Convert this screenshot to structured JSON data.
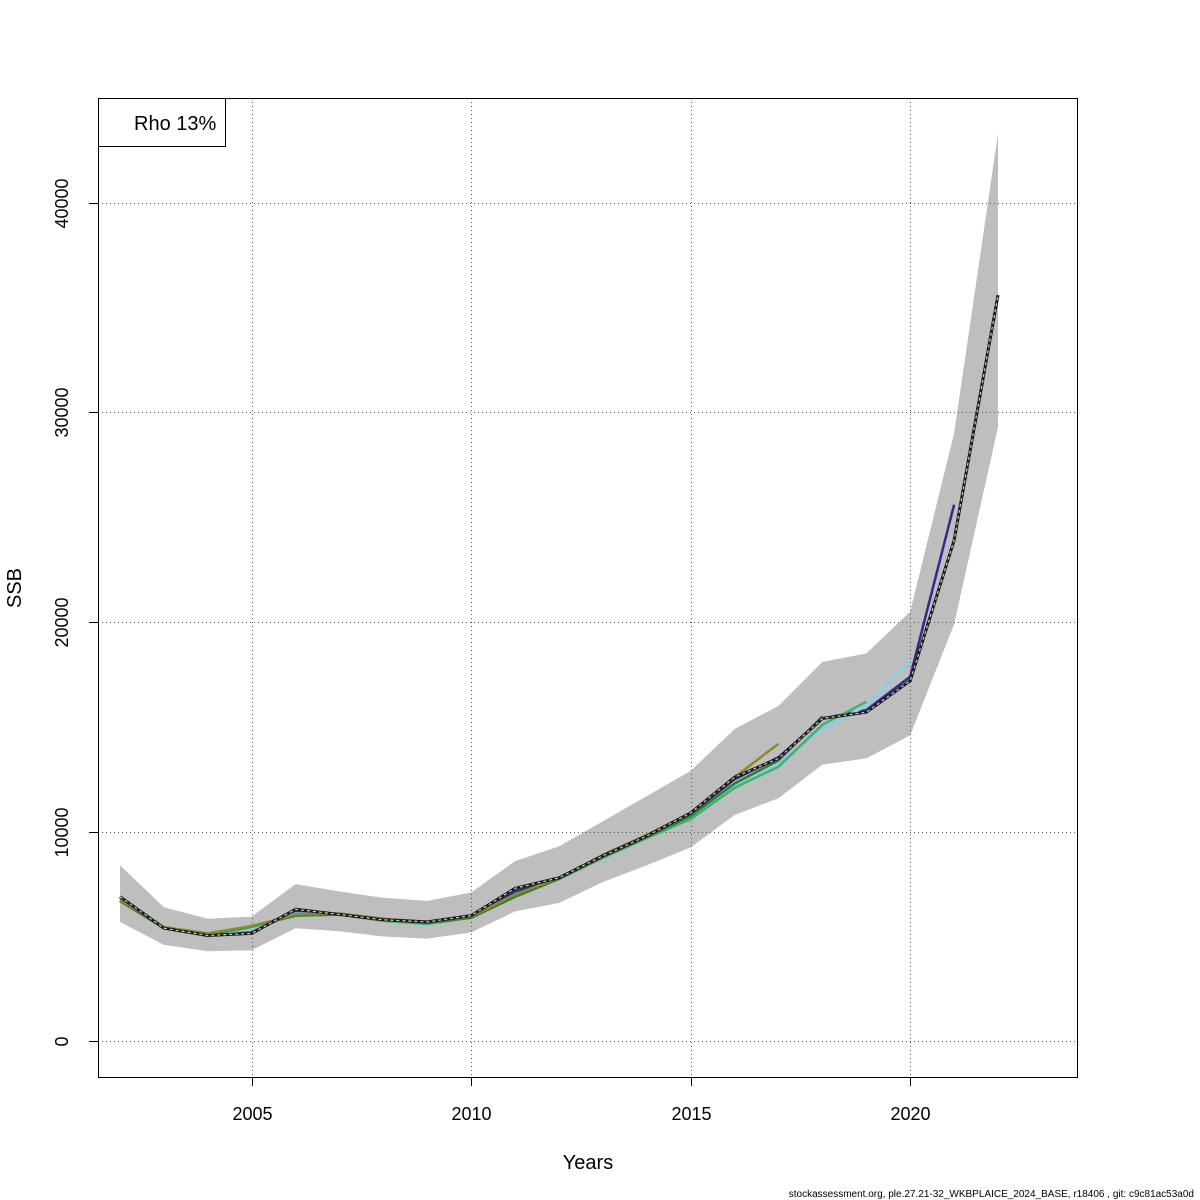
{
  "chart_data": {
    "type": "line",
    "xlabel": "Years",
    "ylabel": "SSB",
    "xlim": [
      2001.5,
      2023.8
    ],
    "ylim": [
      -1700,
      45000
    ],
    "x_ticks": [
      2005,
      2010,
      2015,
      2020
    ],
    "y_ticks": [
      0,
      10000,
      20000,
      30000,
      40000
    ],
    "grid": true,
    "legend": {
      "text": "Rho 13%",
      "placement": "top-left"
    },
    "confidence_band": {
      "color": "#bebebe",
      "x": [
        2002,
        2003,
        2004,
        2005,
        2006,
        2007,
        2008,
        2009,
        2010,
        2011,
        2012,
        2013,
        2014,
        2015,
        2016,
        2017,
        2018,
        2019,
        2020,
        2021,
        2022
      ],
      "lower": [
        5700,
        4600,
        4300,
        4350,
        5400,
        5250,
        5000,
        4900,
        5200,
        6200,
        6600,
        7600,
        8400,
        9250,
        10800,
        11600,
        13200,
        13500,
        14600,
        19900,
        29300
      ],
      "upper": [
        8400,
        6400,
        5850,
        5950,
        7500,
        7150,
        6850,
        6700,
        7100,
        8600,
        9300,
        10500,
        11700,
        12900,
        14900,
        16000,
        18100,
        18500,
        20500,
        29000,
        43300
      ]
    },
    "series": [
      {
        "color": "#1a1a1a",
        "dashed": true,
        "x": [
          2002,
          2003,
          2004,
          2005,
          2006,
          2007,
          2008,
          2009,
          2010,
          2011,
          2012,
          2013,
          2014,
          2015,
          2016,
          2017,
          2018,
          2019,
          2020,
          2021,
          2022
        ],
        "values": [
          6900,
          5400,
          5050,
          5150,
          6300,
          6050,
          5800,
          5700,
          6000,
          7300,
          7800,
          8850,
          9800,
          10900,
          12600,
          13500,
          15400,
          15700,
          17200,
          23900,
          35600
        ]
      },
      {
        "color": "#2d2d8c",
        "dashed": false,
        "x": [
          2002,
          2003,
          2004,
          2005,
          2006,
          2007,
          2008,
          2009,
          2010,
          2011,
          2012,
          2013,
          2014,
          2015,
          2016,
          2017,
          2018,
          2019,
          2020,
          2021
        ],
        "values": [
          6850,
          5400,
          5050,
          5200,
          6200,
          6050,
          5800,
          5700,
          6000,
          7150,
          7800,
          8850,
          9800,
          10850,
          12500,
          13550,
          15400,
          15800,
          17400,
          25600
        ]
      },
      {
        "color": "#87ceeb",
        "dashed": false,
        "x": [
          2002,
          2003,
          2004,
          2005,
          2006,
          2007,
          2008,
          2009,
          2010,
          2011,
          2012,
          2013,
          2014,
          2015,
          2016,
          2017,
          2018,
          2019,
          2020
        ],
        "values": [
          6700,
          5450,
          5000,
          5400,
          6100,
          6050,
          5750,
          5650,
          5950,
          7000,
          7750,
          8800,
          9700,
          10700,
          12250,
          13300,
          14900,
          16000,
          18200
        ]
      },
      {
        "color": "#3cb371",
        "dashed": false,
        "x": [
          2002,
          2003,
          2004,
          2005,
          2006,
          2007,
          2008,
          2009,
          2010,
          2011,
          2012,
          2013,
          2014,
          2015,
          2016,
          2017,
          2018,
          2019
        ],
        "values": [
          6700,
          5400,
          5050,
          5450,
          6000,
          6050,
          5750,
          5600,
          5900,
          6900,
          7750,
          8750,
          9700,
          10600,
          12100,
          13100,
          15100,
          16200
        ]
      },
      {
        "color": "#2e7d32",
        "dashed": false,
        "x": [
          2002,
          2003,
          2004,
          2005,
          2006,
          2007,
          2008,
          2009,
          2010,
          2011,
          2012,
          2013,
          2014,
          2015,
          2016,
          2017,
          2018
        ],
        "values": [
          6700,
          5400,
          5100,
          5500,
          6000,
          6050,
          5800,
          5650,
          5900,
          6900,
          7750,
          8800,
          9750,
          10750,
          12300,
          13400,
          15500
        ]
      },
      {
        "color": "#8a8a2a",
        "dashed": false,
        "x": [
          2002,
          2003,
          2004,
          2005,
          2006,
          2007,
          2008,
          2009,
          2010,
          2011,
          2012,
          2013,
          2014,
          2015,
          2016,
          2017
        ],
        "values": [
          6750,
          5450,
          5150,
          5500,
          6050,
          6100,
          5850,
          5700,
          5950,
          7000,
          7800,
          8900,
          9850,
          10900,
          12600,
          14200
        ]
      }
    ]
  },
  "footer": "stockassessment.org, ple.27.21-32_WKBPLAICE_2024_BASE, r18406 , git: c9c81ac53a0d"
}
